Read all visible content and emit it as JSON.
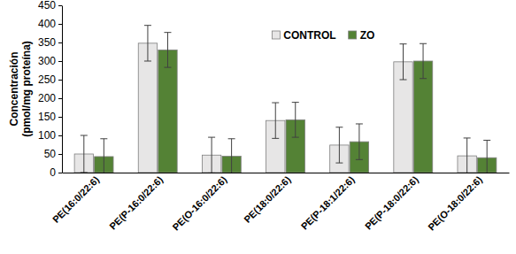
{
  "chart_data": {
    "type": "bar",
    "y_label": [
      "Concentración",
      "(pmol/mg proteína)"
    ],
    "categories": [
      "PE(16:0/22:6)",
      "PE(P-16:0/22:6)",
      "PE(O-16:0/22:6)",
      "PE(18:0/22:6)",
      "PE(P-18:1/22:6)",
      "PE(P-18:0/22:6)",
      "PE(O-18:0/22:6)"
    ],
    "series": [
      {
        "name": "CONTROL",
        "color": "#e7e6e6",
        "values": [
          50,
          348,
          47,
          140,
          74,
          298,
          45
        ],
        "errors": [
          50,
          48,
          48,
          48,
          48,
          48,
          48
        ]
      },
      {
        "name": "ZO",
        "color": "#548235",
        "values": [
          43,
          330,
          44,
          142,
          83,
          300,
          40
        ],
        "errors": [
          48,
          47,
          47,
          47,
          48,
          47,
          47
        ]
      }
    ],
    "ylim": [
      0,
      450
    ],
    "yticks": [
      0,
      50,
      100,
      150,
      200,
      250,
      300,
      350,
      400,
      450
    ],
    "grid": false,
    "legend": "top"
  }
}
